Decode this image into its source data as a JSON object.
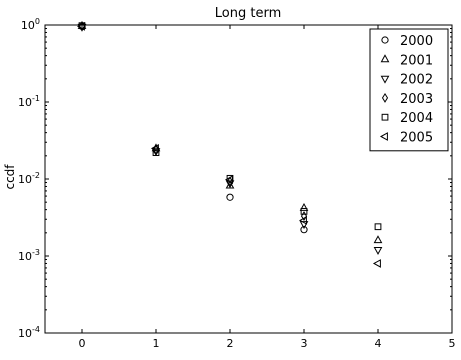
{
  "chart_data": {
    "type": "scatter",
    "title": "Long term",
    "xlabel": "",
    "ylabel": "ccdf",
    "xlim": [
      -0.5,
      5
    ],
    "ylim": [
      0.0001,
      1
    ],
    "yscale": "log",
    "grid": false,
    "legend_position": "top-right",
    "x_ticks": [
      0,
      1,
      2,
      3,
      4,
      5
    ],
    "x_tick_labels": [
      "0",
      "1",
      "2",
      "3",
      "4",
      "5"
    ],
    "y_ticks": [
      0.0001,
      0.001,
      0.01,
      0.1,
      1
    ],
    "y_tick_labels": [
      {
        "base": "10",
        "exp": "-4"
      },
      {
        "base": "10",
        "exp": "-3"
      },
      {
        "base": "10",
        "exp": "-2"
      },
      {
        "base": "10",
        "exp": "-1"
      },
      {
        "base": "10",
        "exp": "0"
      }
    ],
    "series": [
      {
        "name": "2000",
        "marker": "circle",
        "x": [
          0,
          1,
          2,
          3
        ],
        "y": [
          0.96,
          0.024,
          0.0058,
          0.0022
        ]
      },
      {
        "name": "2001",
        "marker": "triangle-up",
        "x": [
          0,
          1,
          2,
          3,
          4
        ],
        "y": [
          0.97,
          0.025,
          0.0082,
          0.0042,
          0.0016
        ]
      },
      {
        "name": "2002",
        "marker": "triangle-down",
        "x": [
          0,
          1,
          2,
          3,
          4
        ],
        "y": [
          0.95,
          0.023,
          0.0088,
          0.0026,
          0.0012
        ]
      },
      {
        "name": "2003",
        "marker": "diamond",
        "x": [
          0,
          1,
          2,
          3
        ],
        "y": [
          0.97,
          0.024,
          0.0093,
          0.0033
        ]
      },
      {
        "name": "2004",
        "marker": "square",
        "x": [
          0,
          1,
          2,
          3,
          4
        ],
        "y": [
          0.98,
          0.022,
          0.0102,
          0.0038,
          0.0024
        ]
      },
      {
        "name": "2005",
        "marker": "triangle-left",
        "x": [
          0,
          1,
          2,
          3,
          4
        ],
        "y": [
          0.96,
          0.025,
          0.0098,
          0.0029,
          0.0008
        ]
      }
    ]
  }
}
